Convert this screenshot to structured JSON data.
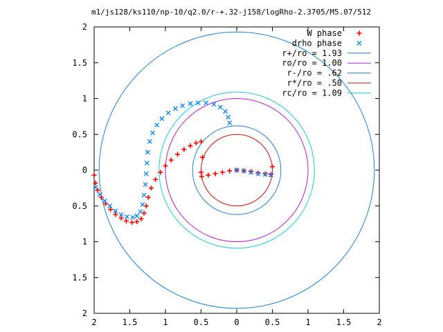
{
  "chart_data": {
    "type": "scatter",
    "title": "m1/js128/ks110/np-10/q2.0/r-+.32-j158/logRho-2.3705/M5.07/512",
    "xlabel": "",
    "ylabel": "",
    "xlim": [
      -2,
      2
    ],
    "ylim": [
      -2,
      2
    ],
    "x_tick_labels": [
      "2",
      "1.5",
      "1",
      "0.5",
      "0",
      "0.5",
      "1",
      "1.5",
      "2"
    ],
    "y_tick_labels": [
      "2",
      "1.5",
      "1",
      "0.5",
      "0",
      "0.5",
      "1",
      "1.5",
      "2"
    ],
    "tick_values": [
      -2,
      -1.5,
      -1,
      -0.5,
      0,
      0.5,
      1,
      1.5,
      2
    ],
    "grid": false,
    "legend_position": "top-right",
    "series": [
      {
        "name": "W phase",
        "marker": "+",
        "color": "#ff0000",
        "points": [
          [
            -2.0,
            -0.07
          ],
          [
            -1.98,
            -0.18
          ],
          [
            -1.95,
            -0.28
          ],
          [
            -1.9,
            -0.38
          ],
          [
            -1.84,
            -0.47
          ],
          [
            -1.77,
            -0.55
          ],
          [
            -1.7,
            -0.62
          ],
          [
            -1.62,
            -0.67
          ],
          [
            -1.55,
            -0.71
          ],
          [
            -1.47,
            -0.73
          ],
          [
            -1.4,
            -0.72
          ],
          [
            -1.34,
            -0.68
          ],
          [
            -1.3,
            -0.6
          ],
          [
            -1.27,
            -0.5
          ],
          [
            -1.24,
            -0.38
          ],
          [
            -1.2,
            -0.25
          ],
          [
            -1.14,
            -0.13
          ],
          [
            -1.07,
            -0.03
          ],
          [
            -1.0,
            0.06
          ],
          [
            -0.92,
            0.14
          ],
          [
            -0.83,
            0.22
          ],
          [
            -0.74,
            0.29
          ],
          [
            -0.65,
            0.34
          ],
          [
            -0.57,
            0.38
          ],
          [
            -0.5,
            0.4
          ],
          [
            -0.48,
            0.18
          ],
          [
            -0.5,
            -0.03
          ],
          [
            -0.49,
            -0.09
          ],
          [
            -0.4,
            -0.07
          ],
          [
            -0.3,
            -0.05
          ],
          [
            -0.2,
            -0.03
          ],
          [
            -0.1,
            -0.01
          ],
          [
            0.0,
            0.0
          ],
          [
            0.1,
            -0.01
          ],
          [
            0.2,
            -0.02
          ],
          [
            0.3,
            -0.04
          ],
          [
            0.4,
            -0.05
          ],
          [
            0.48,
            -0.06
          ],
          [
            0.5,
            0.05
          ]
        ]
      },
      {
        "name": "drho phase",
        "marker": "x",
        "color": "#0080ff",
        "points": [
          [
            -1.98,
            -0.24
          ],
          [
            -1.92,
            -0.34
          ],
          [
            -1.85,
            -0.43
          ],
          [
            -1.78,
            -0.5
          ],
          [
            -1.7,
            -0.57
          ],
          [
            -1.62,
            -0.62
          ],
          [
            -1.54,
            -0.65
          ],
          [
            -1.46,
            -0.66
          ],
          [
            -1.4,
            -0.64
          ],
          [
            -1.35,
            -0.58
          ],
          [
            -1.32,
            -0.48
          ],
          [
            -1.3,
            -0.35
          ],
          [
            -1.28,
            -0.2
          ],
          [
            -1.27,
            -0.05
          ],
          [
            -1.26,
            0.1
          ],
          [
            -1.25,
            0.25
          ],
          [
            -1.22,
            0.4
          ],
          [
            -1.18,
            0.52
          ],
          [
            -1.12,
            0.63
          ],
          [
            -1.05,
            0.72
          ],
          [
            -0.96,
            0.8
          ],
          [
            -0.86,
            0.86
          ],
          [
            -0.76,
            0.9
          ],
          [
            -0.65,
            0.93
          ],
          [
            -0.54,
            0.94
          ],
          [
            -0.43,
            0.94
          ],
          [
            -0.32,
            0.92
          ],
          [
            -0.23,
            0.88
          ],
          [
            -0.16,
            0.82
          ],
          [
            -0.12,
            0.74
          ],
          [
            -0.1,
            0.66
          ],
          [
            0.0,
            0.0
          ],
          [
            0.1,
            -0.01
          ],
          [
            0.2,
            -0.03
          ],
          [
            0.3,
            -0.05
          ],
          [
            0.4,
            -0.06
          ],
          [
            0.48,
            -0.07
          ]
        ]
      },
      {
        "name": "r+/ro = 1.93",
        "type": "circle",
        "radius": 1.93,
        "color": "#1f7fcf"
      },
      {
        "name": "ro/ro = 1.00",
        "type": "circle",
        "radius": 1.0,
        "color": "#b020d0"
      },
      {
        "name": "r-/ro = .62",
        "type": "circle",
        "radius": 0.62,
        "color": "#1f7fcf"
      },
      {
        "name": "r*/ro = .50",
        "type": "circle",
        "radius": 0.5,
        "color": "#d01010"
      },
      {
        "name": "rc/ro = 1.09",
        "type": "circle",
        "radius": 1.09,
        "color": "#20c8d8"
      }
    ]
  }
}
